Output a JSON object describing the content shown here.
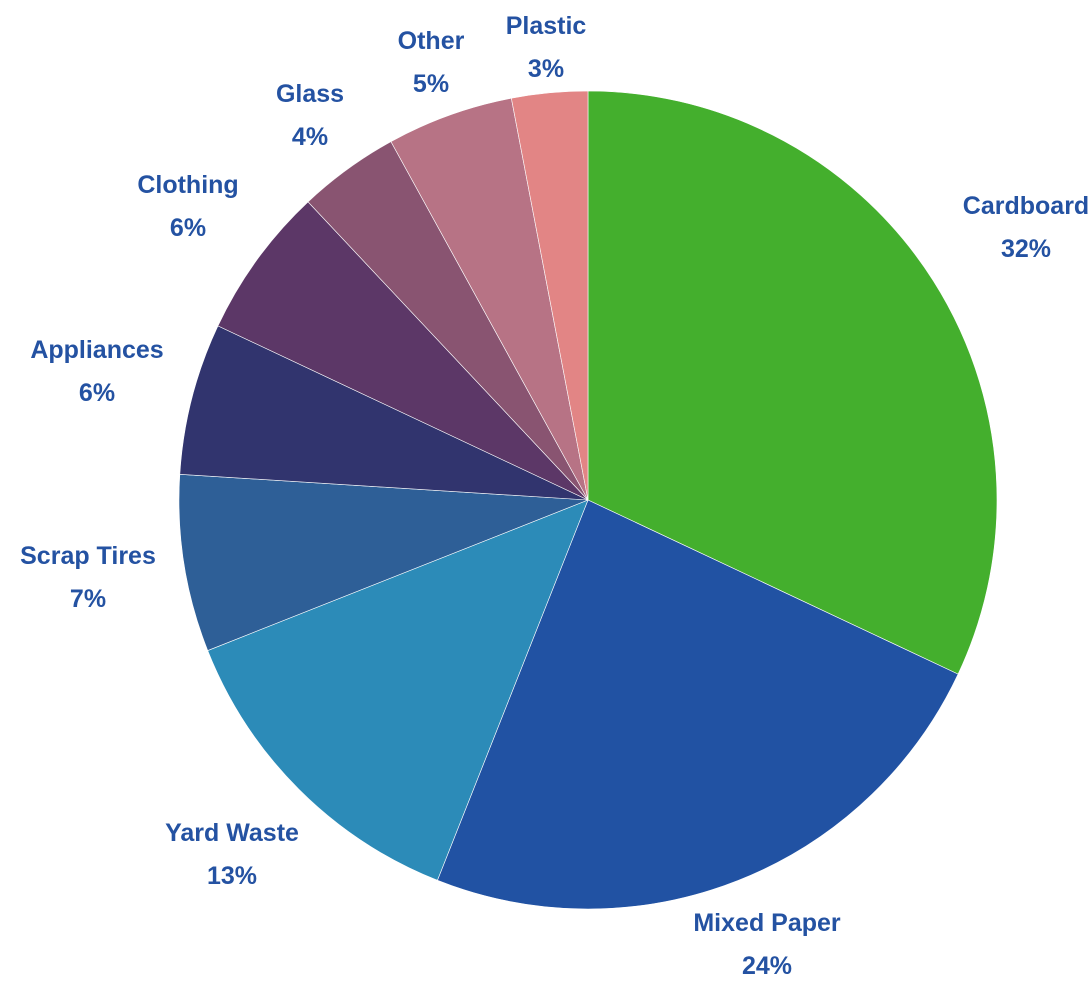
{
  "chart_data": {
    "type": "pie",
    "start_angle_deg": 0,
    "direction": "clockwise",
    "label_color": "#2452A2",
    "slices": [
      {
        "label": "Cardboard",
        "value": 32,
        "value_label": "32%",
        "color": "#44AF2D"
      },
      {
        "label": "Mixed Paper",
        "value": 24,
        "value_label": "24%",
        "color": "#2152A3"
      },
      {
        "label": "Yard Waste",
        "value": 13,
        "value_label": "13%",
        "color": "#2C8BB8"
      },
      {
        "label": "Scrap Tires",
        "value": 7,
        "value_label": "7%",
        "color": "#2E5F97"
      },
      {
        "label": "Appliances",
        "value": 6,
        "value_label": "6%",
        "color": "#31346E"
      },
      {
        "label": "Clothing",
        "value": 6,
        "value_label": "6%",
        "color": "#5C3767"
      },
      {
        "label": "Glass",
        "value": 4,
        "value_label": "4%",
        "color": "#895471"
      },
      {
        "label": "Other",
        "value": 5,
        "value_label": "5%",
        "color": "#B77385"
      },
      {
        "label": "Plastic",
        "value": 3,
        "value_label": "3%",
        "color": "#E28585"
      }
    ]
  }
}
